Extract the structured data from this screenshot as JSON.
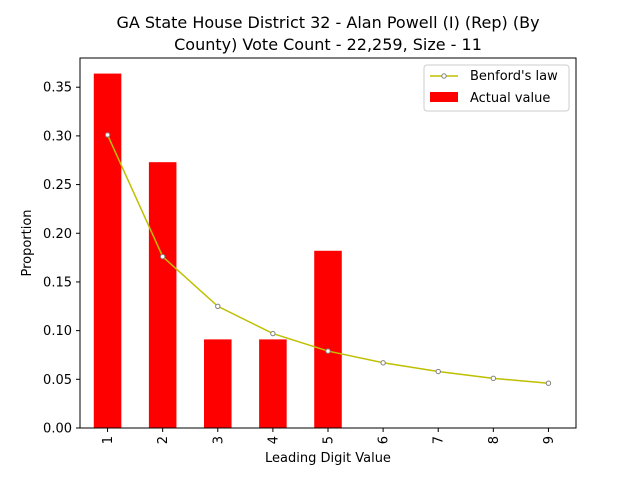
{
  "chart_data": {
    "type": "bar",
    "title_lines": [
      "GA State House District 32 - Alan Powell (I) (Rep) (By",
      "County) Vote Count - 22,259, Size - 11"
    ],
    "xlabel": "Leading Digit Value",
    "ylabel": "Proportion",
    "categories": [
      "1",
      "2",
      "3",
      "4",
      "5",
      "6",
      "7",
      "8",
      "9"
    ],
    "ylim": [
      0,
      0.38
    ],
    "yticks": [
      "0.00",
      "0.05",
      "0.10",
      "0.15",
      "0.20",
      "0.25",
      "0.30",
      "0.35"
    ],
    "legend_position": "upper right",
    "series": [
      {
        "name": "Benford's law",
        "kind": "line",
        "color": "#bfbf00",
        "values": [
          0.301,
          0.176,
          0.125,
          0.097,
          0.079,
          0.067,
          0.058,
          0.051,
          0.046
        ]
      },
      {
        "name": "Actual value",
        "kind": "bar",
        "color": "#ff0000",
        "values": [
          0.364,
          0.273,
          0.091,
          0.091,
          0.182,
          0,
          0,
          0,
          0
        ]
      }
    ]
  }
}
